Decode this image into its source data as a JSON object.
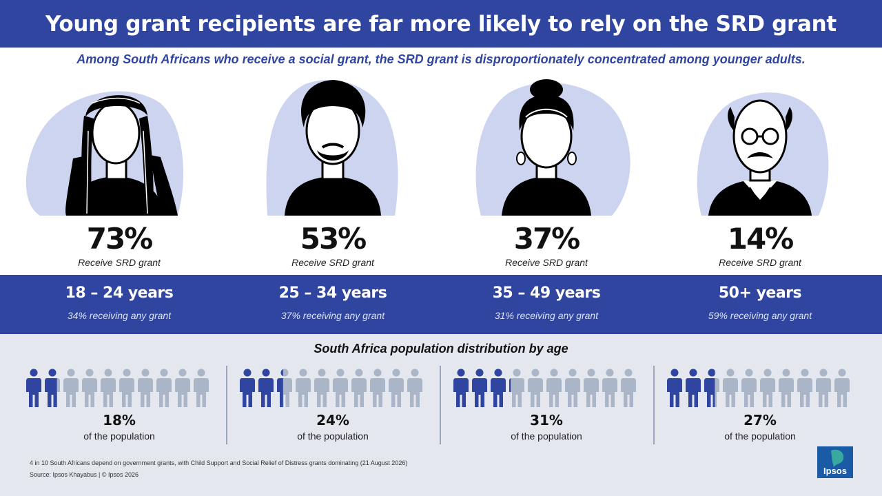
{
  "title": "Young grant recipients are far more likely to rely on the SRD grant",
  "subtitle": "Among South Africans who receive a social grant, the SRD grant is disproportionately concentrated among younger adults.",
  "groups": [
    {
      "portrait_icon": "young-woman-dreadlocks-icon",
      "srd_pct": "73%",
      "srd_label": "Receive SRD grant",
      "age": "18 – 24 years",
      "any_grant": "34% receiving any grant",
      "population_pct": "18%",
      "population_label": "of the population",
      "population_value": 18
    },
    {
      "portrait_icon": "young-man-beard-icon",
      "srd_pct": "53%",
      "srd_label": "Receive SRD grant",
      "age": "25 – 34 years",
      "any_grant": "37% receiving any grant",
      "population_pct": "24%",
      "population_label": "of the population",
      "population_value": 24
    },
    {
      "portrait_icon": "woman-headwrap-icon",
      "srd_pct": "37%",
      "srd_label": "Receive SRD grant",
      "age": "35 – 49 years",
      "any_grant": "31% receiving any grant",
      "population_pct": "31%",
      "population_label": "of the population",
      "population_value": 31
    },
    {
      "portrait_icon": "older-man-glasses-icon",
      "srd_pct": "14%",
      "srd_label": "Receive SRD grant",
      "age": "50+ years",
      "any_grant": "59% receiving any grant",
      "population_pct": "27%",
      "population_label": "of the population",
      "population_value": 27
    }
  ],
  "distribution_title": "South Africa population distribution by age",
  "footnote": "4 in 10 South Africans depend on government grants, with Child Support and Social Relief of Distress grants dominating (21 August 2026)",
  "source": "Source: Ipsos Khayabus | © Ipsos 2026",
  "logo_text": "Ipsos",
  "colors": {
    "brand_blue": "#2f45a0",
    "blob": "#cdd4ef",
    "person_filled": "#2f45a0",
    "person_empty": "#aab5c8",
    "bottom_bg": "#e4e7ee",
    "logo": "#1b5aa5"
  }
}
